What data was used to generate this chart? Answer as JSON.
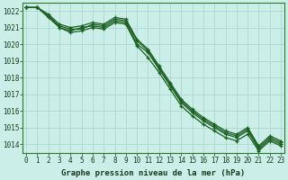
{
  "title": "Graphe pression niveau de la mer (hPa)",
  "bg_color": "#cceee8",
  "grid_color": "#aad8cc",
  "line_color": "#1a6020",
  "xlim_min": -0.3,
  "xlim_max": 23.3,
  "ylim_min": 1013.5,
  "ylim_max": 1022.5,
  "yticks": [
    1014,
    1015,
    1016,
    1017,
    1018,
    1019,
    1020,
    1021,
    1022
  ],
  "xticks": [
    0,
    1,
    2,
    3,
    4,
    5,
    6,
    7,
    8,
    9,
    10,
    11,
    12,
    13,
    14,
    15,
    16,
    17,
    18,
    19,
    20,
    21,
    22,
    23
  ],
  "series": [
    [
      1022.2,
      1022.2,
      1021.7,
      1021.0,
      1020.8,
      1021.0,
      1021.1,
      1021.0,
      1021.4,
      1021.3,
      1020.0,
      1019.5,
      1018.5,
      1017.5,
      1016.5,
      1015.9,
      1015.4,
      1015.0,
      1014.6,
      1014.4,
      1014.8,
      1013.7,
      1014.3,
      1014.0
    ],
    [
      1022.2,
      1022.2,
      1021.6,
      1021.0,
      1020.7,
      1020.8,
      1021.0,
      1020.9,
      1021.3,
      1021.2,
      1019.9,
      1019.2,
      1018.3,
      1017.3,
      1016.3,
      1015.7,
      1015.2,
      1014.8,
      1014.4,
      1014.2,
      1014.6,
      1013.6,
      1014.2,
      1013.9
    ],
    [
      1022.2,
      1022.2,
      1021.7,
      1021.1,
      1020.9,
      1020.9,
      1021.2,
      1021.1,
      1021.5,
      1021.4,
      1020.2,
      1019.6,
      1018.6,
      1017.6,
      1016.6,
      1016.0,
      1015.5,
      1015.1,
      1014.7,
      1014.5,
      1014.9,
      1013.8,
      1014.4,
      1014.1
    ],
    [
      1022.2,
      1022.2,
      1021.8,
      1021.2,
      1021.0,
      1021.1,
      1021.3,
      1021.2,
      1021.6,
      1021.5,
      1020.3,
      1019.7,
      1018.7,
      1017.7,
      1016.7,
      1016.1,
      1015.6,
      1015.2,
      1014.8,
      1014.6,
      1015.0,
      1013.9,
      1014.5,
      1014.2
    ]
  ],
  "title_fontsize": 6.5,
  "tick_fontsize": 5.5,
  "marker_size": 3.5,
  "line_width": 0.9
}
